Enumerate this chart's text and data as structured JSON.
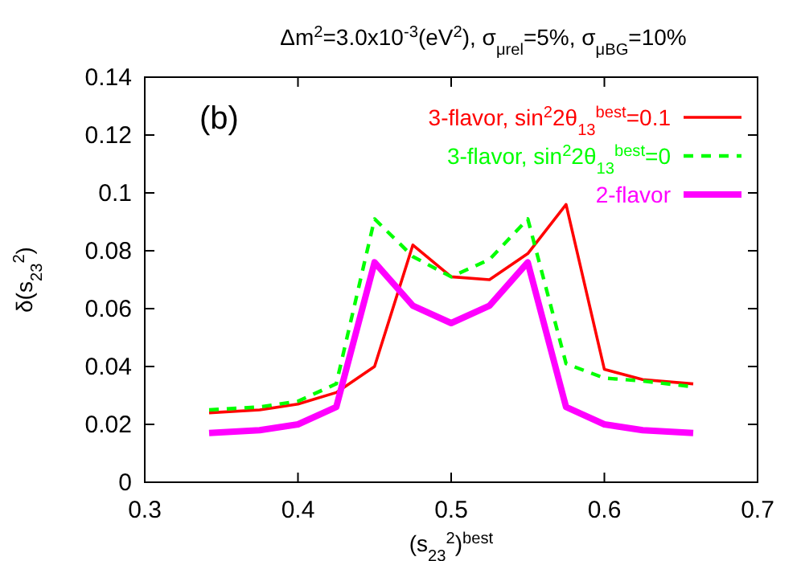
{
  "chart_data": {
    "type": "line",
    "title": "Δm$^{2}$=3.0x10$^{-3}$(eV$^{2}$), σ$_{μrel}$=5%, σ$_{μBG}$=10%",
    "xlabel": "(s$_{23}$$^{2}$)$^{best}$",
    "ylabel": "δ(s$_{23}$$^{2}$)",
    "annotations": [
      "(b)"
    ],
    "x": [
      0.342,
      0.375,
      0.4,
      0.425,
      0.45,
      0.475,
      0.5,
      0.525,
      0.55,
      0.575,
      0.6,
      0.625,
      0.658
    ],
    "series": [
      {
        "name": "3-flavor, sin$^{2}$2θ$_{13}$$^{best}$=0.1",
        "color": "#ff0000",
        "line_style": "solid",
        "values": [
          0.024,
          0.025,
          0.027,
          0.031,
          0.04,
          0.082,
          0.071,
          0.07,
          0.079,
          0.096,
          0.039,
          0.0355,
          0.034
        ]
      },
      {
        "name": "3-flavor, sin$^{2}$2θ$_{13}$$^{best}$=0",
        "color": "#00ff00",
        "line_style": "dashed",
        "values": [
          0.025,
          0.026,
          0.028,
          0.034,
          0.091,
          0.078,
          0.071,
          0.077,
          0.091,
          0.041,
          0.036,
          0.035,
          0.033
        ]
      },
      {
        "name": "2-flavor",
        "color": "#ff00ff",
        "line_style": "solid",
        "values": [
          0.017,
          0.018,
          0.02,
          0.026,
          0.076,
          0.061,
          0.055,
          0.061,
          0.076,
          0.026,
          0.02,
          0.018,
          0.017
        ]
      }
    ],
    "xlim": [
      0.3,
      0.7
    ],
    "xticks": [
      0.3,
      0.4,
      0.5,
      0.6,
      0.7
    ],
    "ylim": [
      0,
      0.14
    ],
    "yticks": [
      0,
      0.02,
      0.04,
      0.06,
      0.08,
      0.1,
      0.12,
      0.14
    ],
    "legend": "top right",
    "grid": false
  }
}
